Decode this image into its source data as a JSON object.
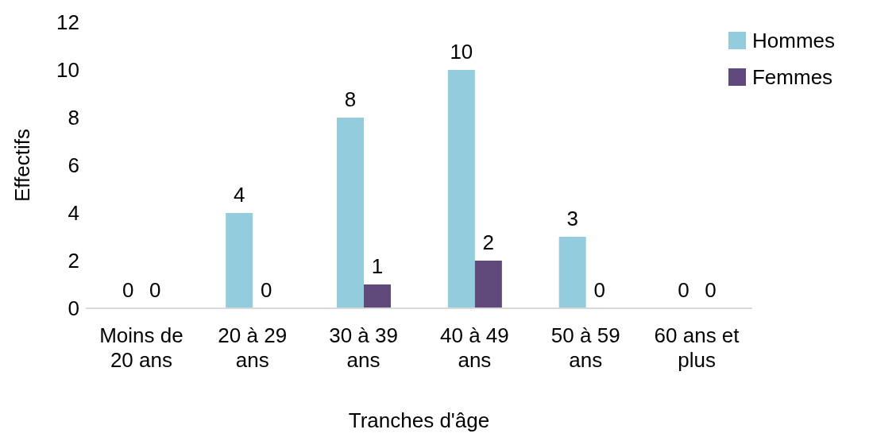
{
  "chart_data": {
    "type": "bar",
    "xlabel": "Tranches d'âge",
    "ylabel": "Effectifs",
    "categories": [
      "Moins de 20 ans",
      "20 à 29 ans",
      "30 à 39 ans",
      "40 à 49 ans",
      "50 à 59 ans",
      "60 ans et plus"
    ],
    "series": [
      {
        "name": "Hommes",
        "color": "#93cddd",
        "values": [
          0,
          4,
          8,
          10,
          3,
          0
        ]
      },
      {
        "name": "Femmes",
        "color": "#604a7b",
        "values": [
          0,
          0,
          1,
          2,
          0,
          0
        ]
      }
    ],
    "ylim": [
      0,
      12
    ],
    "yticks": [
      0,
      2,
      4,
      6,
      8,
      10,
      12
    ],
    "grid": false,
    "legend": "top right",
    "data_labels": true
  }
}
